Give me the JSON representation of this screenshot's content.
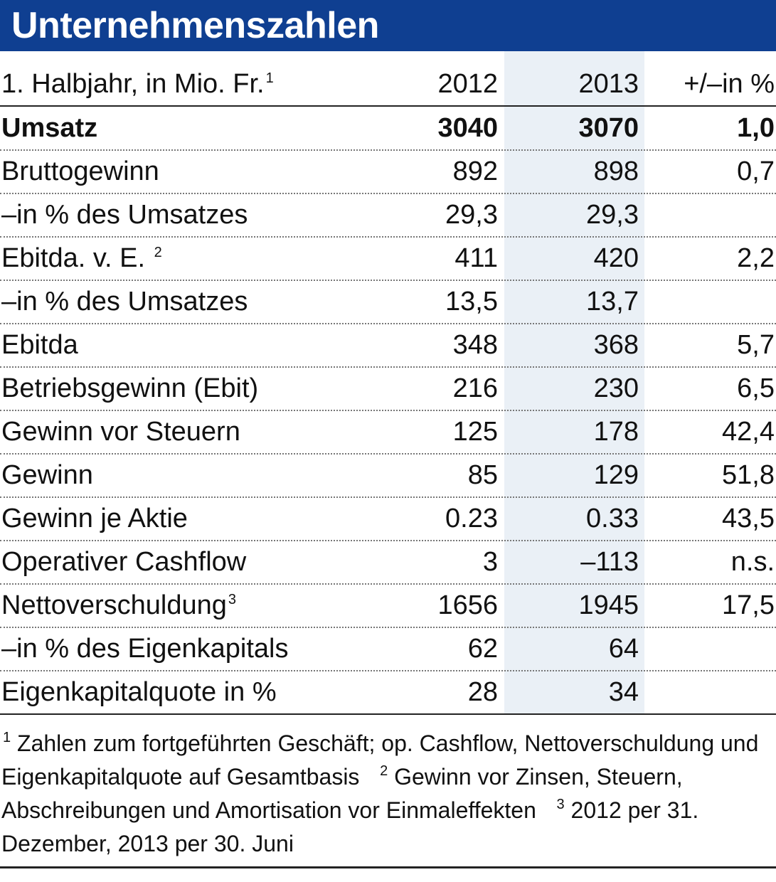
{
  "title": "Unternehmenszahlen",
  "header": {
    "label": "1. Halbjahr, in Mio. Fr.",
    "label_sup": "1",
    "col_2012": "2012",
    "col_2013": "2013",
    "col_pct": "+/–in %"
  },
  "rows": [
    {
      "label": "Umsatz",
      "sup": "",
      "v2012": "3040",
      "v2013": "3070",
      "pct": "1,0",
      "bold": true
    },
    {
      "label": "Bruttogewinn",
      "sup": "",
      "v2012": "892",
      "v2013": "898",
      "pct": "0,7"
    },
    {
      "label": "–in % des Umsatzes",
      "sup": "",
      "v2012": "29,3",
      "v2013": "29,3",
      "pct": ""
    },
    {
      "label": "Ebitda. v. E. ",
      "sup": "2",
      "v2012": "411",
      "v2013": "420",
      "pct": "2,2"
    },
    {
      "label": "–in % des Umsatzes",
      "sup": "",
      "v2012": "13,5",
      "v2013": "13,7",
      "pct": ""
    },
    {
      "label": "Ebitda",
      "sup": "",
      "v2012": "348",
      "v2013": "368",
      "pct": "5,7"
    },
    {
      "label": "Betriebsgewinn (Ebit)",
      "sup": "",
      "v2012": "216",
      "v2013": "230",
      "pct": "6,5"
    },
    {
      "label": "Gewinn vor Steuern",
      "sup": "",
      "v2012": "125",
      "v2013": "178",
      "pct": "42,4"
    },
    {
      "label": "Gewinn",
      "sup": "",
      "v2012": "85",
      "v2013": "129",
      "pct": "51,8"
    },
    {
      "label": "Gewinn je Aktie",
      "sup": "",
      "v2012": "0.23",
      "v2013": "0.33",
      "pct": "43,5"
    },
    {
      "label": "Operativer Cashflow",
      "sup": "",
      "v2012": "3",
      "v2013": "–113",
      "pct": "n.s."
    },
    {
      "label": "Nettoverschuldung",
      "sup": "3",
      "v2012": "1656",
      "v2013": "1945",
      "pct": "17,5"
    },
    {
      "label": "–in % des Eigenkapitals",
      "sup": "",
      "v2012": "62",
      "v2013": "64",
      "pct": ""
    },
    {
      "label": "Eigenkapitalquote in %",
      "sup": "",
      "v2012": "28",
      "v2013": "34",
      "pct": ""
    }
  ],
  "footnotes": {
    "fn1_mark": "1",
    "fn1_text": "Zahlen zum fortgeführten Geschäft; op. Cashflow, Nettoverschuldung und Eigenkapitalquote auf Gesamtbasis",
    "fn2_mark": "2",
    "fn2_text": "Gewinn vor Zinsen, Steuern, Abschreibungen und Amortisation vor Einmaleffekten",
    "fn3_mark": "3",
    "fn3_text": "2012 per 31. Dezember, 2013 per 30. Juni"
  },
  "colors": {
    "title_bar": "#0f3f91",
    "highlight_column": "#eaf0f6"
  }
}
